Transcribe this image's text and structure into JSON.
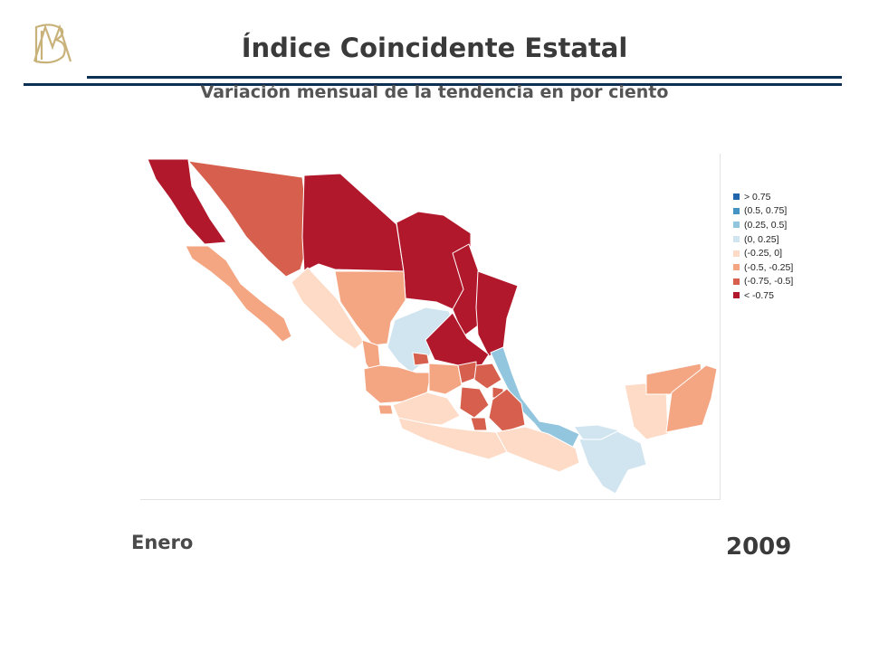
{
  "header": {
    "title": "Índice Coincidente Estatal",
    "subtitle": "Variación mensual de la tendencia en por ciento",
    "logo_icon": "bank-monogram-logo"
  },
  "legend": {
    "items": [
      {
        "label": "> 0.75",
        "color": "#2166ac"
      },
      {
        "label": "(0.5, 0.75]",
        "color": "#4393c3"
      },
      {
        "label": "(0.25, 0.5]",
        "color": "#92c5de"
      },
      {
        "label": "(0, 0.25]",
        "color": "#d1e5f0"
      },
      {
        "label": "(-0.25, 0]",
        "color": "#fddbc7"
      },
      {
        "label": "(-0.5, -0.25]",
        "color": "#f4a582"
      },
      {
        "label": "(-0.75, -0.5]",
        "color": "#d6604d"
      },
      {
        "label": "< -0.75",
        "color": "#b2182b"
      }
    ]
  },
  "map": {
    "country": "Mexico",
    "border_color": "#ffffff"
  },
  "footer": {
    "month": "Enero",
    "year": "2009"
  }
}
